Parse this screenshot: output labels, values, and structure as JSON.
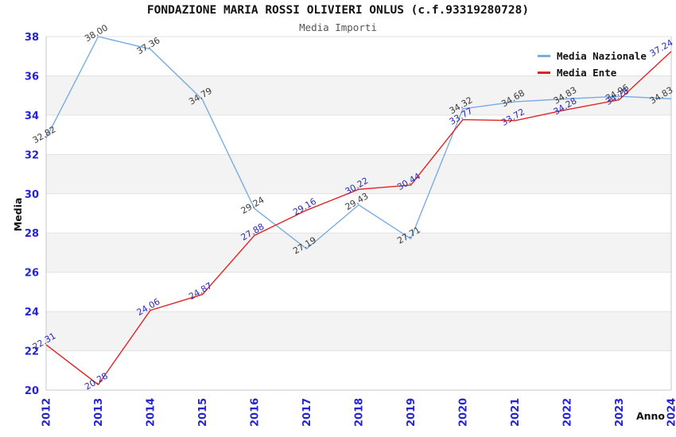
{
  "title": "FONDAZIONE MARIA ROSSI OLIVIERI ONLUS (c.f.93319280728)",
  "subtitle": "Media Importi",
  "legend": [
    {
      "label": "Media Nazionale",
      "color": "#79ade2"
    },
    {
      "label": "Media Ente",
      "color": "#e02424"
    }
  ],
  "colors": {
    "grid": "#e2e2e2",
    "axis": "#c8c8c8",
    "tick_label": "#2424d6",
    "band_fill": "#f3f3f3",
    "title": "#111111",
    "subtitle": "#555555",
    "axis_title": "#111111"
  },
  "chart_data": {
    "type": "line",
    "title": "FONDAZIONE MARIA ROSSI OLIVIERI ONLUS (c.f.93319280728)",
    "subtitle": "Media Importi",
    "xlabel": "Anno",
    "ylabel": "Media",
    "x": [
      "2012",
      "2013",
      "2014",
      "2015",
      "2016",
      "2017",
      "2018",
      "2019",
      "2020",
      "2021",
      "2022",
      "2023",
      "2024"
    ],
    "series": [
      {
        "name": "Media Nazionale",
        "color": "#79ade2",
        "label_color": "#3b3b3b",
        "values": [
          32.82,
          38.0,
          37.36,
          34.79,
          29.24,
          27.19,
          29.43,
          27.71,
          34.32,
          34.68,
          34.83,
          34.96,
          34.83
        ]
      },
      {
        "name": "Media Ente",
        "color": "#e02424",
        "label_color": "#2a2ab8",
        "values": [
          22.31,
          20.28,
          24.06,
          24.87,
          27.88,
          29.16,
          30.22,
          30.44,
          33.77,
          33.72,
          34.28,
          34.78,
          37.24
        ]
      }
    ],
    "ylim": [
      20,
      38
    ],
    "yticks": [
      20,
      22,
      24,
      26,
      28,
      30,
      32,
      34,
      36,
      38
    ],
    "grid": true,
    "alternating_bands": true,
    "legend_position": "top-right",
    "data_labels_rotation_deg": -30
  }
}
